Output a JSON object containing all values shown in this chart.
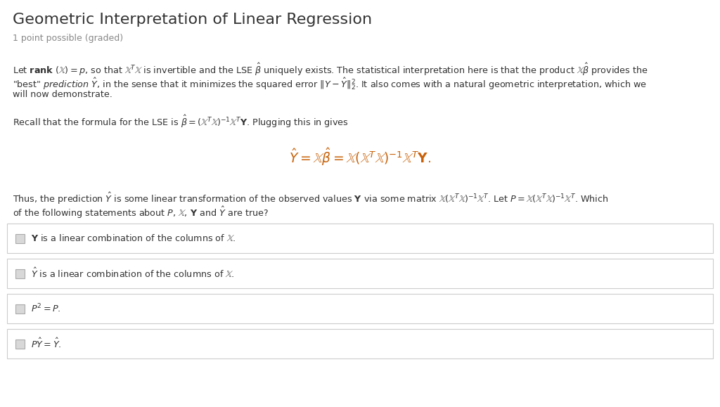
{
  "title": "Geometric Interpretation of Linear Regression",
  "subtitle": "1 point possible (graded)",
  "bg_color": "#ffffff",
  "text_color": "#333333",
  "gray_color": "#888888",
  "orange_color": "#c8620a",
  "figsize": [
    10.24,
    5.79
  ],
  "dpi": 100
}
